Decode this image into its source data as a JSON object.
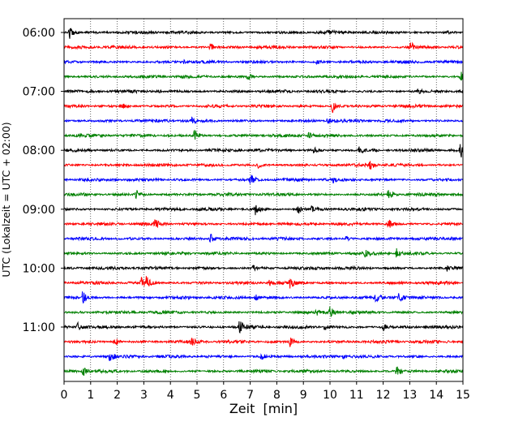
{
  "chart_data": {
    "type": "line",
    "subtype": "helicorder-seismogram",
    "xlabel": "Zeit  [min]",
    "ylabel": "UTC (Lokalzeit = UTC + 02:00)",
    "xlim": [
      0,
      15
    ],
    "x_ticks": [
      "0",
      "1",
      "2",
      "3",
      "4",
      "5",
      "6",
      "7",
      "8",
      "9",
      "10",
      "11",
      "12",
      "13",
      "14",
      "15"
    ],
    "y_tick_labels": [
      "06:00",
      "07:00",
      "08:00",
      "09:00",
      "10:00",
      "11:00"
    ],
    "traces_per_hour": 4,
    "trace_minutes": 15,
    "grid": "vertical dotted lines at each minute",
    "color_cycle": [
      "#000000",
      "#ff0000",
      "#0000ff",
      "#008000"
    ],
    "rows": [
      {
        "start": "06:00",
        "events": [
          [
            0.2,
            8
          ],
          [
            9.9,
            3
          ],
          [
            14.4,
            3
          ]
        ]
      },
      {
        "start": "06:15",
        "events": [
          [
            5.5,
            4
          ],
          [
            13.0,
            9
          ]
        ]
      },
      {
        "start": "06:30",
        "events": [
          [
            4.5,
            2
          ],
          [
            9.5,
            3
          ]
        ]
      },
      {
        "start": "06:45",
        "events": [
          [
            6.9,
            5
          ],
          [
            14.9,
            8
          ]
        ]
      },
      {
        "start": "07:00",
        "events": [
          [
            3.5,
            2
          ],
          [
            13.3,
            3
          ]
        ]
      },
      {
        "start": "07:15",
        "events": [
          [
            2.2,
            3
          ],
          [
            10.1,
            9
          ]
        ]
      },
      {
        "start": "07:30",
        "events": [
          [
            4.8,
            3
          ],
          [
            9.9,
            4
          ]
        ]
      },
      {
        "start": "07:45",
        "events": [
          [
            4.9,
            7
          ],
          [
            9.2,
            5
          ]
        ]
      },
      {
        "start": "08:00",
        "events": [
          [
            9.4,
            4
          ],
          [
            11.1,
            5
          ],
          [
            14.9,
            10
          ]
        ]
      },
      {
        "start": "08:15",
        "events": [
          [
            7.3,
            3
          ],
          [
            11.5,
            5
          ]
        ]
      },
      {
        "start": "08:30",
        "events": [
          [
            7.0,
            7
          ],
          [
            10.1,
            3
          ]
        ]
      },
      {
        "start": "08:45",
        "events": [
          [
            2.7,
            6
          ],
          [
            12.2,
            8
          ]
        ]
      },
      {
        "start": "09:00",
        "events": [
          [
            7.2,
            7
          ],
          [
            8.8,
            6
          ],
          [
            9.3,
            4
          ]
        ]
      },
      {
        "start": "09:15",
        "events": [
          [
            3.4,
            7
          ],
          [
            12.2,
            6
          ]
        ]
      },
      {
        "start": "09:30",
        "events": [
          [
            5.5,
            7
          ],
          [
            10.6,
            3
          ],
          [
            14.6,
            3
          ]
        ]
      },
      {
        "start": "09:45",
        "events": [
          [
            11.3,
            4
          ],
          [
            12.5,
            8
          ]
        ]
      },
      {
        "start": "10:00",
        "events": [
          [
            7.1,
            3
          ],
          [
            14.4,
            3
          ]
        ]
      },
      {
        "start": "10:15",
        "events": [
          [
            2.9,
            6
          ],
          [
            3.1,
            9
          ],
          [
            7.7,
            4
          ],
          [
            8.5,
            7
          ]
        ]
      },
      {
        "start": "10:30",
        "events": [
          [
            0.7,
            8
          ],
          [
            7.2,
            4
          ],
          [
            11.7,
            5
          ],
          [
            12.6,
            8
          ]
        ]
      },
      {
        "start": "10:45",
        "events": [
          [
            9.5,
            4
          ],
          [
            10.0,
            8
          ]
        ]
      },
      {
        "start": "11:00",
        "events": [
          [
            0.5,
            6
          ],
          [
            6.6,
            9
          ],
          [
            9.8,
            4
          ],
          [
            12.0,
            5
          ]
        ]
      },
      {
        "start": "11:15",
        "events": [
          [
            1.9,
            6
          ],
          [
            4.8,
            5
          ],
          [
            8.5,
            6
          ]
        ]
      },
      {
        "start": "11:30",
        "events": [
          [
            1.7,
            9
          ],
          [
            7.4,
            6
          ],
          [
            10.5,
            3
          ]
        ]
      },
      {
        "start": "11:45",
        "events": [
          [
            0.7,
            7
          ],
          [
            12.5,
            7
          ]
        ]
      }
    ]
  }
}
